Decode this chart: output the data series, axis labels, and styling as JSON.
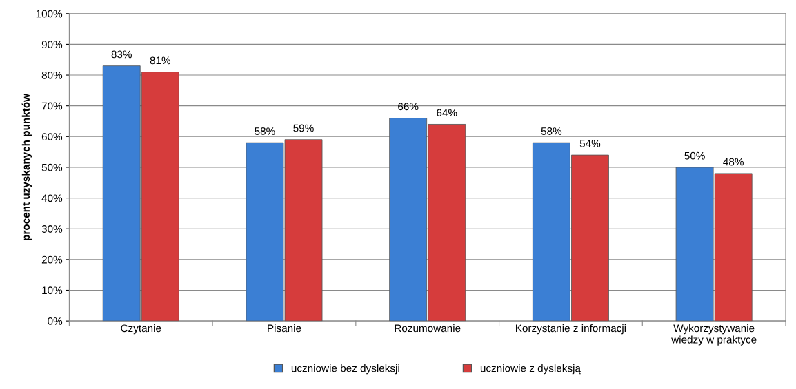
{
  "chart_data": {
    "type": "bar",
    "ylabel": "procent uzyskanych punktów",
    "categories": [
      "Czytanie",
      "Pisanie",
      "Rozumowanie",
      "Korzystanie z informacji",
      "Wykorzystywanie\nwiedzy w praktyce"
    ],
    "series": [
      {
        "name": "uczniowie bez dysleksji",
        "color": "#3b7fd4",
        "values": [
          83,
          58,
          66,
          58,
          50
        ],
        "value_labels": [
          "83%",
          "58%",
          "66%",
          "58%",
          "50%"
        ]
      },
      {
        "name": "uczniowie z dysleksją",
        "color": "#d63c3c",
        "values": [
          81,
          59,
          64,
          54,
          48
        ],
        "value_labels": [
          "81%",
          "59%",
          "64%",
          "54%",
          "48%"
        ]
      }
    ],
    "ylim": [
      0,
      100
    ],
    "yticks": [
      {
        "value": 0,
        "label": "0%"
      },
      {
        "value": 10,
        "label": "10%"
      },
      {
        "value": 20,
        "label": "20%"
      },
      {
        "value": 30,
        "label": "30%"
      },
      {
        "value": 40,
        "label": "40%"
      },
      {
        "value": 50,
        "label": "50%"
      },
      {
        "value": 60,
        "label": "60%"
      },
      {
        "value": 70,
        "label": "70%"
      },
      {
        "value": 80,
        "label": "80%"
      },
      {
        "value": 90,
        "label": "90%"
      },
      {
        "value": 100,
        "label": "100%"
      }
    ],
    "grid": "y",
    "legend": "bottom"
  }
}
